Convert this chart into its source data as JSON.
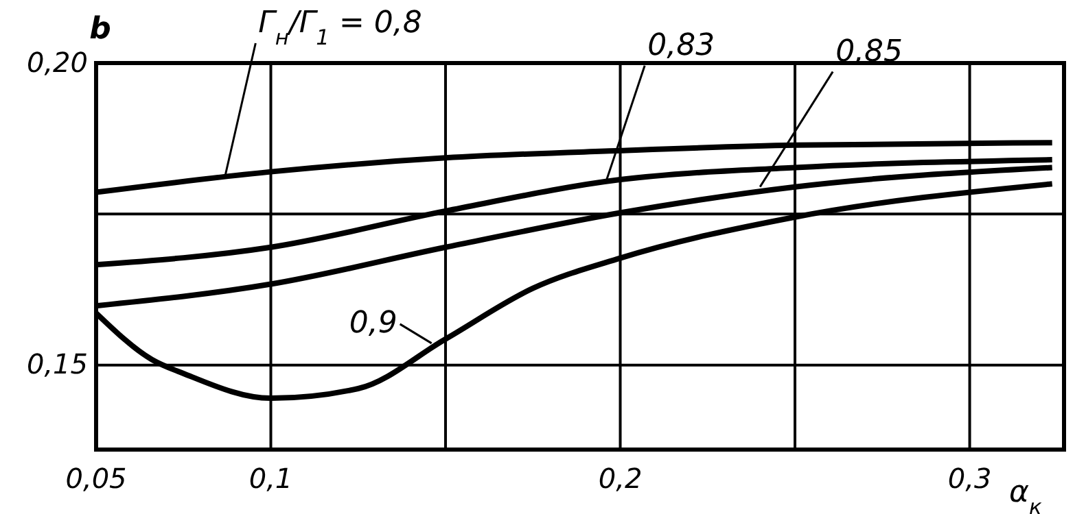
{
  "chart_data": {
    "type": "line",
    "xlabel": "α$_{к}$",
    "ylabel": "b",
    "xlim": [
      0.05,
      0.327
    ],
    "ylim": [
      0.136,
      0.2
    ],
    "xticks": [
      {
        "value": 0.05,
        "label": "0,05"
      },
      {
        "value": 0.1,
        "label": "0,1"
      },
      {
        "value": 0.15,
        "label": null
      },
      {
        "value": 0.2,
        "label": "0,2"
      },
      {
        "value": 0.25,
        "label": null
      },
      {
        "value": 0.3,
        "label": "0,3"
      }
    ],
    "yticks": [
      {
        "value": 0.15,
        "label": "0,15"
      },
      {
        "value": 0.175,
        "label": null
      },
      {
        "value": 0.2,
        "label": "0,20"
      }
    ],
    "grid": true,
    "marker": "none",
    "line_style": "solid",
    "series": [
      {
        "color": "#000000",
        "x": [
          0.05,
          0.1,
          0.15,
          0.2,
          0.25,
          0.3236
        ],
        "values": [
          0.1786,
          0.182,
          0.1843,
          0.1855,
          0.1864,
          0.1868
        ]
      },
      {
        "color": "#000000",
        "x": [
          0.05,
          0.1,
          0.15,
          0.2,
          0.25,
          0.3236
        ],
        "values": [
          0.1666,
          0.1695,
          0.1755,
          0.1807,
          0.1827,
          0.184
        ]
      },
      {
        "color": "#000000",
        "x": [
          0.05,
          0.1,
          0.15,
          0.2,
          0.25,
          0.3236
        ],
        "values": [
          0.1598,
          0.1634,
          0.1695,
          0.1752,
          0.1795,
          0.1827
        ]
      },
      {
        "color": "#000000",
        "x": [
          0.05,
          0.066,
          0.075,
          0.1,
          0.125,
          0.15,
          0.175,
          0.2,
          0.25,
          0.3236
        ],
        "values": [
          0.1586,
          0.1509,
          0.1486,
          0.1445,
          0.1461,
          0.1543,
          0.1627,
          0.1677,
          0.1745,
          0.18
        ]
      }
    ],
    "annotations": [
      {
        "text": "Γ$_{н}$/Γ$_{1}$ = 0,8",
        "x": 0.087,
        "y": 0.1815
      },
      {
        "text": "0,83",
        "x": 0.196,
        "y": 0.1805
      },
      {
        "text": "0,85",
        "x": 0.24,
        "y": 0.1795
      },
      {
        "text": "0,9",
        "x": 0.146,
        "y": 0.1536
      }
    ]
  }
}
